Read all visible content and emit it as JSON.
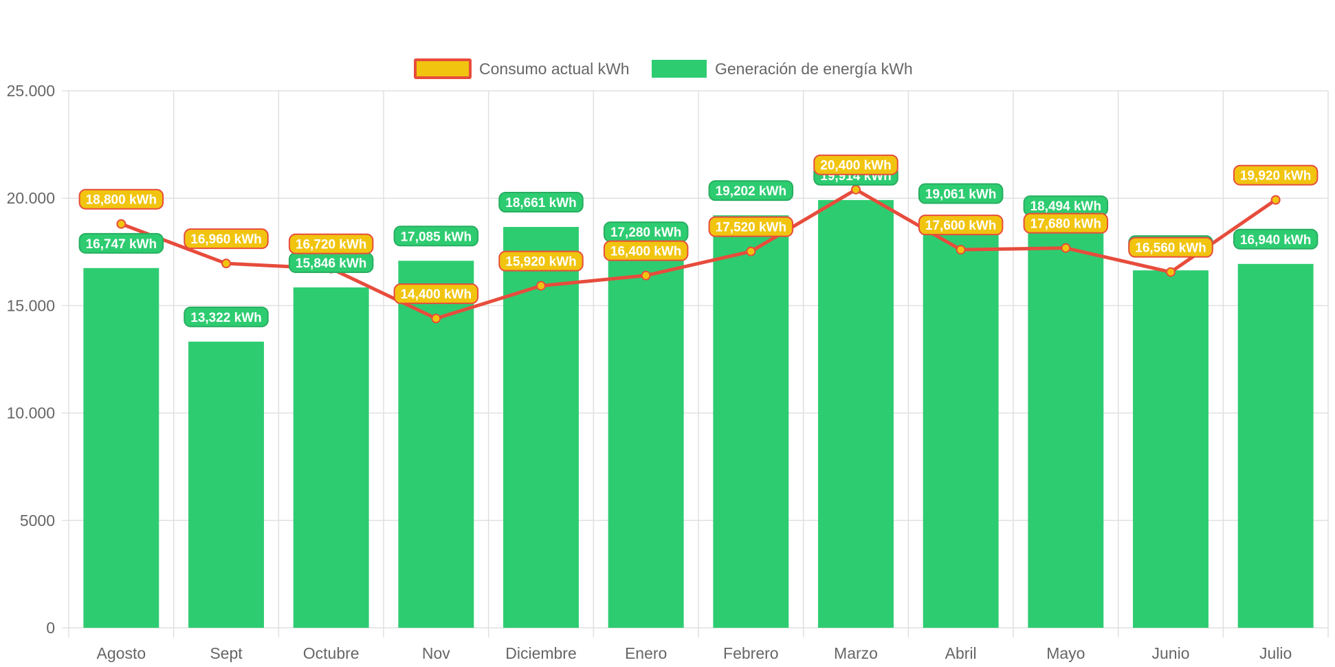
{
  "colors": {
    "bar": "#2ecc71",
    "bar_label_bg": "#2ecc71",
    "bar_label_border": "#27ae60",
    "line": "#e74c3c",
    "point_fill": "#f1c40f",
    "line_label_bg": "#f1c40f",
    "line_label_border": "#e74c3c",
    "grid": "#e0e0e0",
    "axis_text": "#666666"
  },
  "legend": {
    "consumo_label": "Consumo actual kWh",
    "generacion_label": "Generación de energía kWh"
  },
  "chart_data": {
    "type": "bar",
    "categories": [
      "Agosto",
      "Sept",
      "Octubre",
      "Nov",
      "Diciembre",
      "Enero",
      "Febrero",
      "Marzo",
      "Abril",
      "Mayo",
      "Junio",
      "Julio"
    ],
    "series": [
      {
        "name": "Generación de energía kWh",
        "type": "bar",
        "values": [
          16747,
          13322,
          15846,
          17085,
          18661,
          17280,
          19202,
          19914,
          19061,
          18494,
          16640,
          16940
        ],
        "labels": [
          "16,747 kWh",
          "13,322 kWh",
          "15,846 kWh",
          "17,085 kWh",
          "18,661 kWh",
          "17,280 kWh",
          "19,202 kWh",
          "19,914 kWh",
          "19,061 kWh",
          "18,494 kWh",
          "16,640 kWh",
          "16,940 kWh"
        ]
      },
      {
        "name": "Consumo actual kWh",
        "type": "line",
        "values": [
          18800,
          16960,
          16720,
          14400,
          15920,
          16400,
          17520,
          20400,
          17600,
          17680,
          16560,
          19920
        ],
        "labels": [
          "18,800 kWh",
          "16,960 kWh",
          "16,720 kWh",
          "14,400 kWh",
          "15,920 kWh",
          "16,400 kWh",
          "17,520 kWh",
          "20,400 kWh",
          "17,600 kWh",
          "17,680 kWh",
          "16,560 kWh",
          "19,920 kWh"
        ]
      }
    ],
    "ylim": [
      0,
      25000
    ],
    "yticks": [
      0,
      5000,
      10000,
      15000,
      20000,
      25000
    ],
    "ytick_labels": [
      "0",
      "5000",
      "10.000",
      "15.000",
      "20.000",
      "25.000"
    ],
    "grid": true,
    "legend_position": "top",
    "title": "",
    "xlabel": "",
    "ylabel": ""
  }
}
